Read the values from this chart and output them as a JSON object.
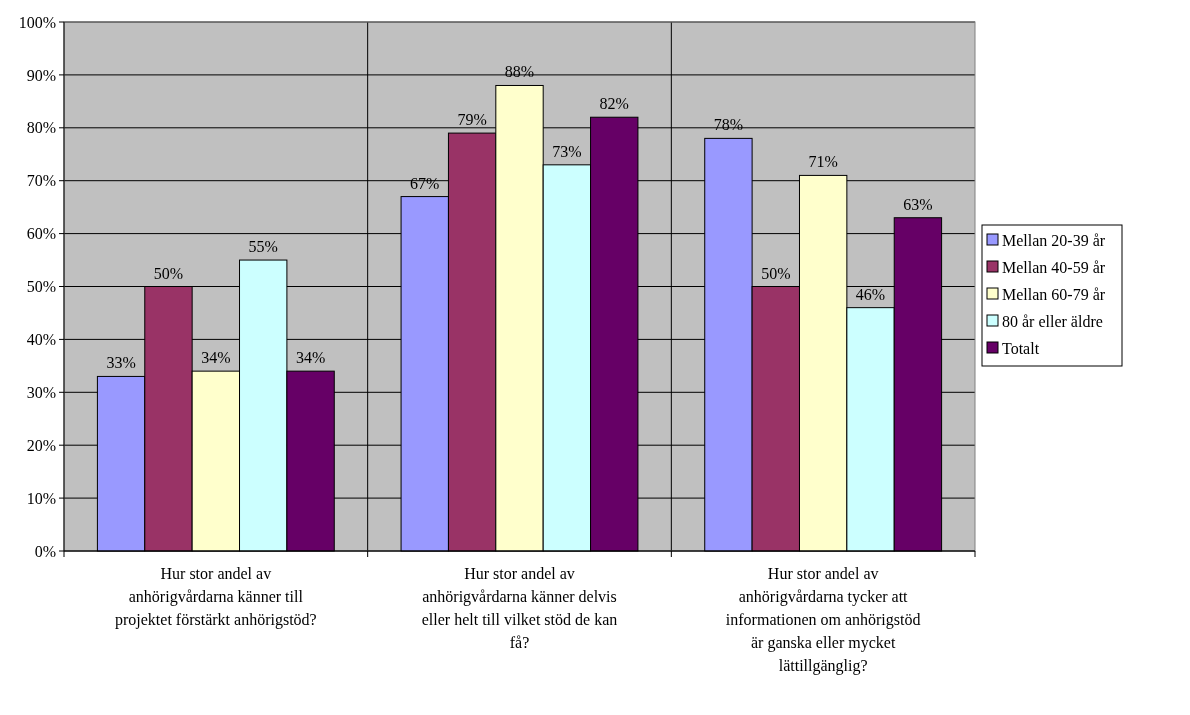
{
  "chart_data": {
    "type": "bar",
    "categories": [
      "Hur stor andel av anhörigvårdarna känner till projektet förstärkt anhörigstöd?",
      "Hur stor andel av anhörigvårdarna känner delvis eller helt till vilket stöd de kan få?",
      "Hur stor andel av anhörigvårdarna tycker att informationen om anhörigstöd är ganska eller mycket lättillgänglig?"
    ],
    "series": [
      {
        "name": "Mellan 20-39 år",
        "color": "#9999ff",
        "values": [
          33,
          67,
          78
        ],
        "value_labels": [
          "33%",
          "67%",
          "78%"
        ]
      },
      {
        "name": "Mellan 40-59 år",
        "color": "#993366",
        "values": [
          50,
          79,
          50
        ],
        "value_labels": [
          "50%",
          "79%",
          "50%"
        ]
      },
      {
        "name": "Mellan 60-79 år",
        "color": "#ffffcc",
        "values": [
          34,
          88,
          71
        ],
        "value_labels": [
          "34%",
          "88%",
          "71%"
        ]
      },
      {
        "name": "80 år eller äldre",
        "color": "#ccffff",
        "values": [
          55,
          73,
          46
        ],
        "value_labels": [
          "55%",
          "73%",
          "46%"
        ]
      },
      {
        "name": "Totalt",
        "color": "#660066",
        "values": [
          34,
          82,
          63
        ],
        "value_labels": [
          "34%",
          "82%",
          "63%"
        ]
      }
    ],
    "ylim": [
      0,
      100
    ],
    "yticks": [
      {
        "value": 0,
        "label": "0%"
      },
      {
        "value": 10,
        "label": "10%"
      },
      {
        "value": 20,
        "label": "20%"
      },
      {
        "value": 30,
        "label": "30%"
      },
      {
        "value": 40,
        "label": "40%"
      },
      {
        "value": 50,
        "label": "50%"
      },
      {
        "value": 60,
        "label": "60%"
      },
      {
        "value": 70,
        "label": "70%"
      },
      {
        "value": 80,
        "label": "80%"
      },
      {
        "value": 90,
        "label": "90%"
      },
      {
        "value": 100,
        "label": "100%"
      }
    ],
    "grid": true,
    "legend": "right"
  }
}
